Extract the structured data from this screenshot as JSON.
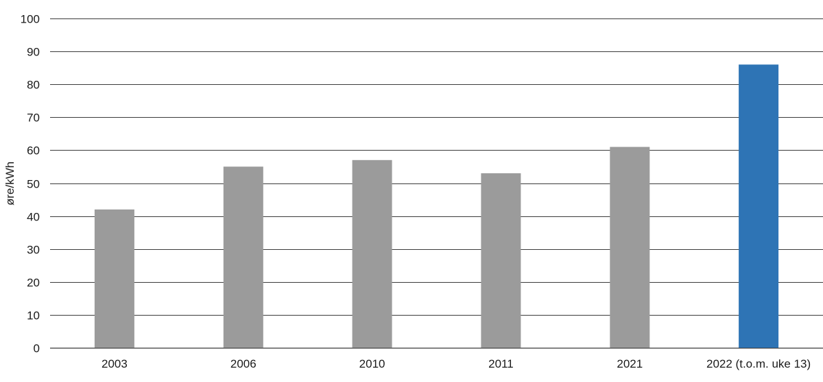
{
  "chart_data": {
    "type": "bar",
    "title": "",
    "xlabel": "",
    "ylabel": "øre/kWh",
    "ylim": [
      0,
      100
    ],
    "yticks": [
      0,
      10,
      20,
      30,
      40,
      50,
      60,
      70,
      80,
      90,
      100
    ],
    "categories": [
      "2003",
      "2006",
      "2010",
      "2011",
      "2021",
      "2022 (t.o.m. uke 13)"
    ],
    "values": [
      42,
      55,
      57,
      53,
      61,
      86
    ],
    "bar_colors": [
      "#9b9b9b",
      "#9b9b9b",
      "#9b9b9b",
      "#9b9b9b",
      "#9b9b9b",
      "#2e74b5"
    ],
    "grid": true,
    "legend": "none"
  }
}
